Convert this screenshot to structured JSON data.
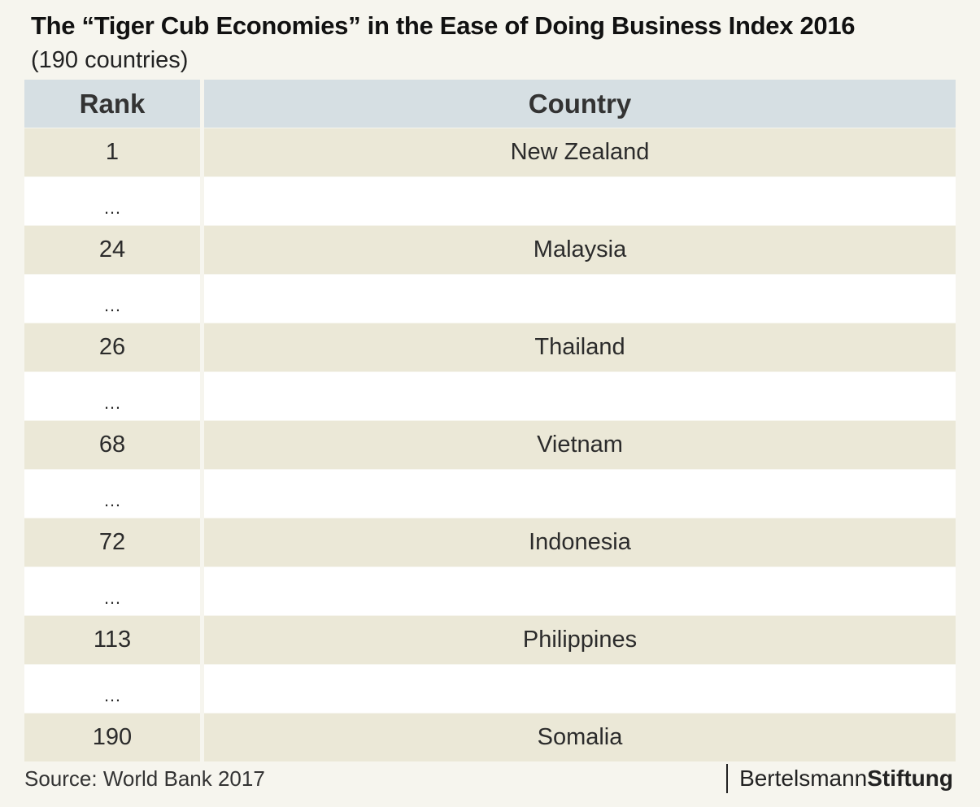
{
  "title": "The “Tiger Cub Economies” in the Ease of Doing Business Index 2016",
  "subtitle": "(190 countries)",
  "chart_data": {
    "type": "table",
    "columns": [
      "Rank",
      "Country"
    ],
    "rows": [
      {
        "rank": "1",
        "country": "New Zealand"
      },
      {
        "rank": "…",
        "country": ""
      },
      {
        "rank": "24",
        "country": "Malaysia"
      },
      {
        "rank": "…",
        "country": ""
      },
      {
        "rank": "26",
        "country": "Thailand"
      },
      {
        "rank": "…",
        "country": ""
      },
      {
        "rank": "68",
        "country": "Vietnam"
      },
      {
        "rank": "…",
        "country": ""
      },
      {
        "rank": "72",
        "country": "Indonesia"
      },
      {
        "rank": "…",
        "country": ""
      },
      {
        "rank": "113",
        "country": "Philippines"
      },
      {
        "rank": "…",
        "country": ""
      },
      {
        "rank": "190",
        "country": "Somalia"
      }
    ]
  },
  "source": "Source: World Bank 2017",
  "logo": {
    "part1": "Bertelsmann",
    "part2": "Stiftung"
  }
}
